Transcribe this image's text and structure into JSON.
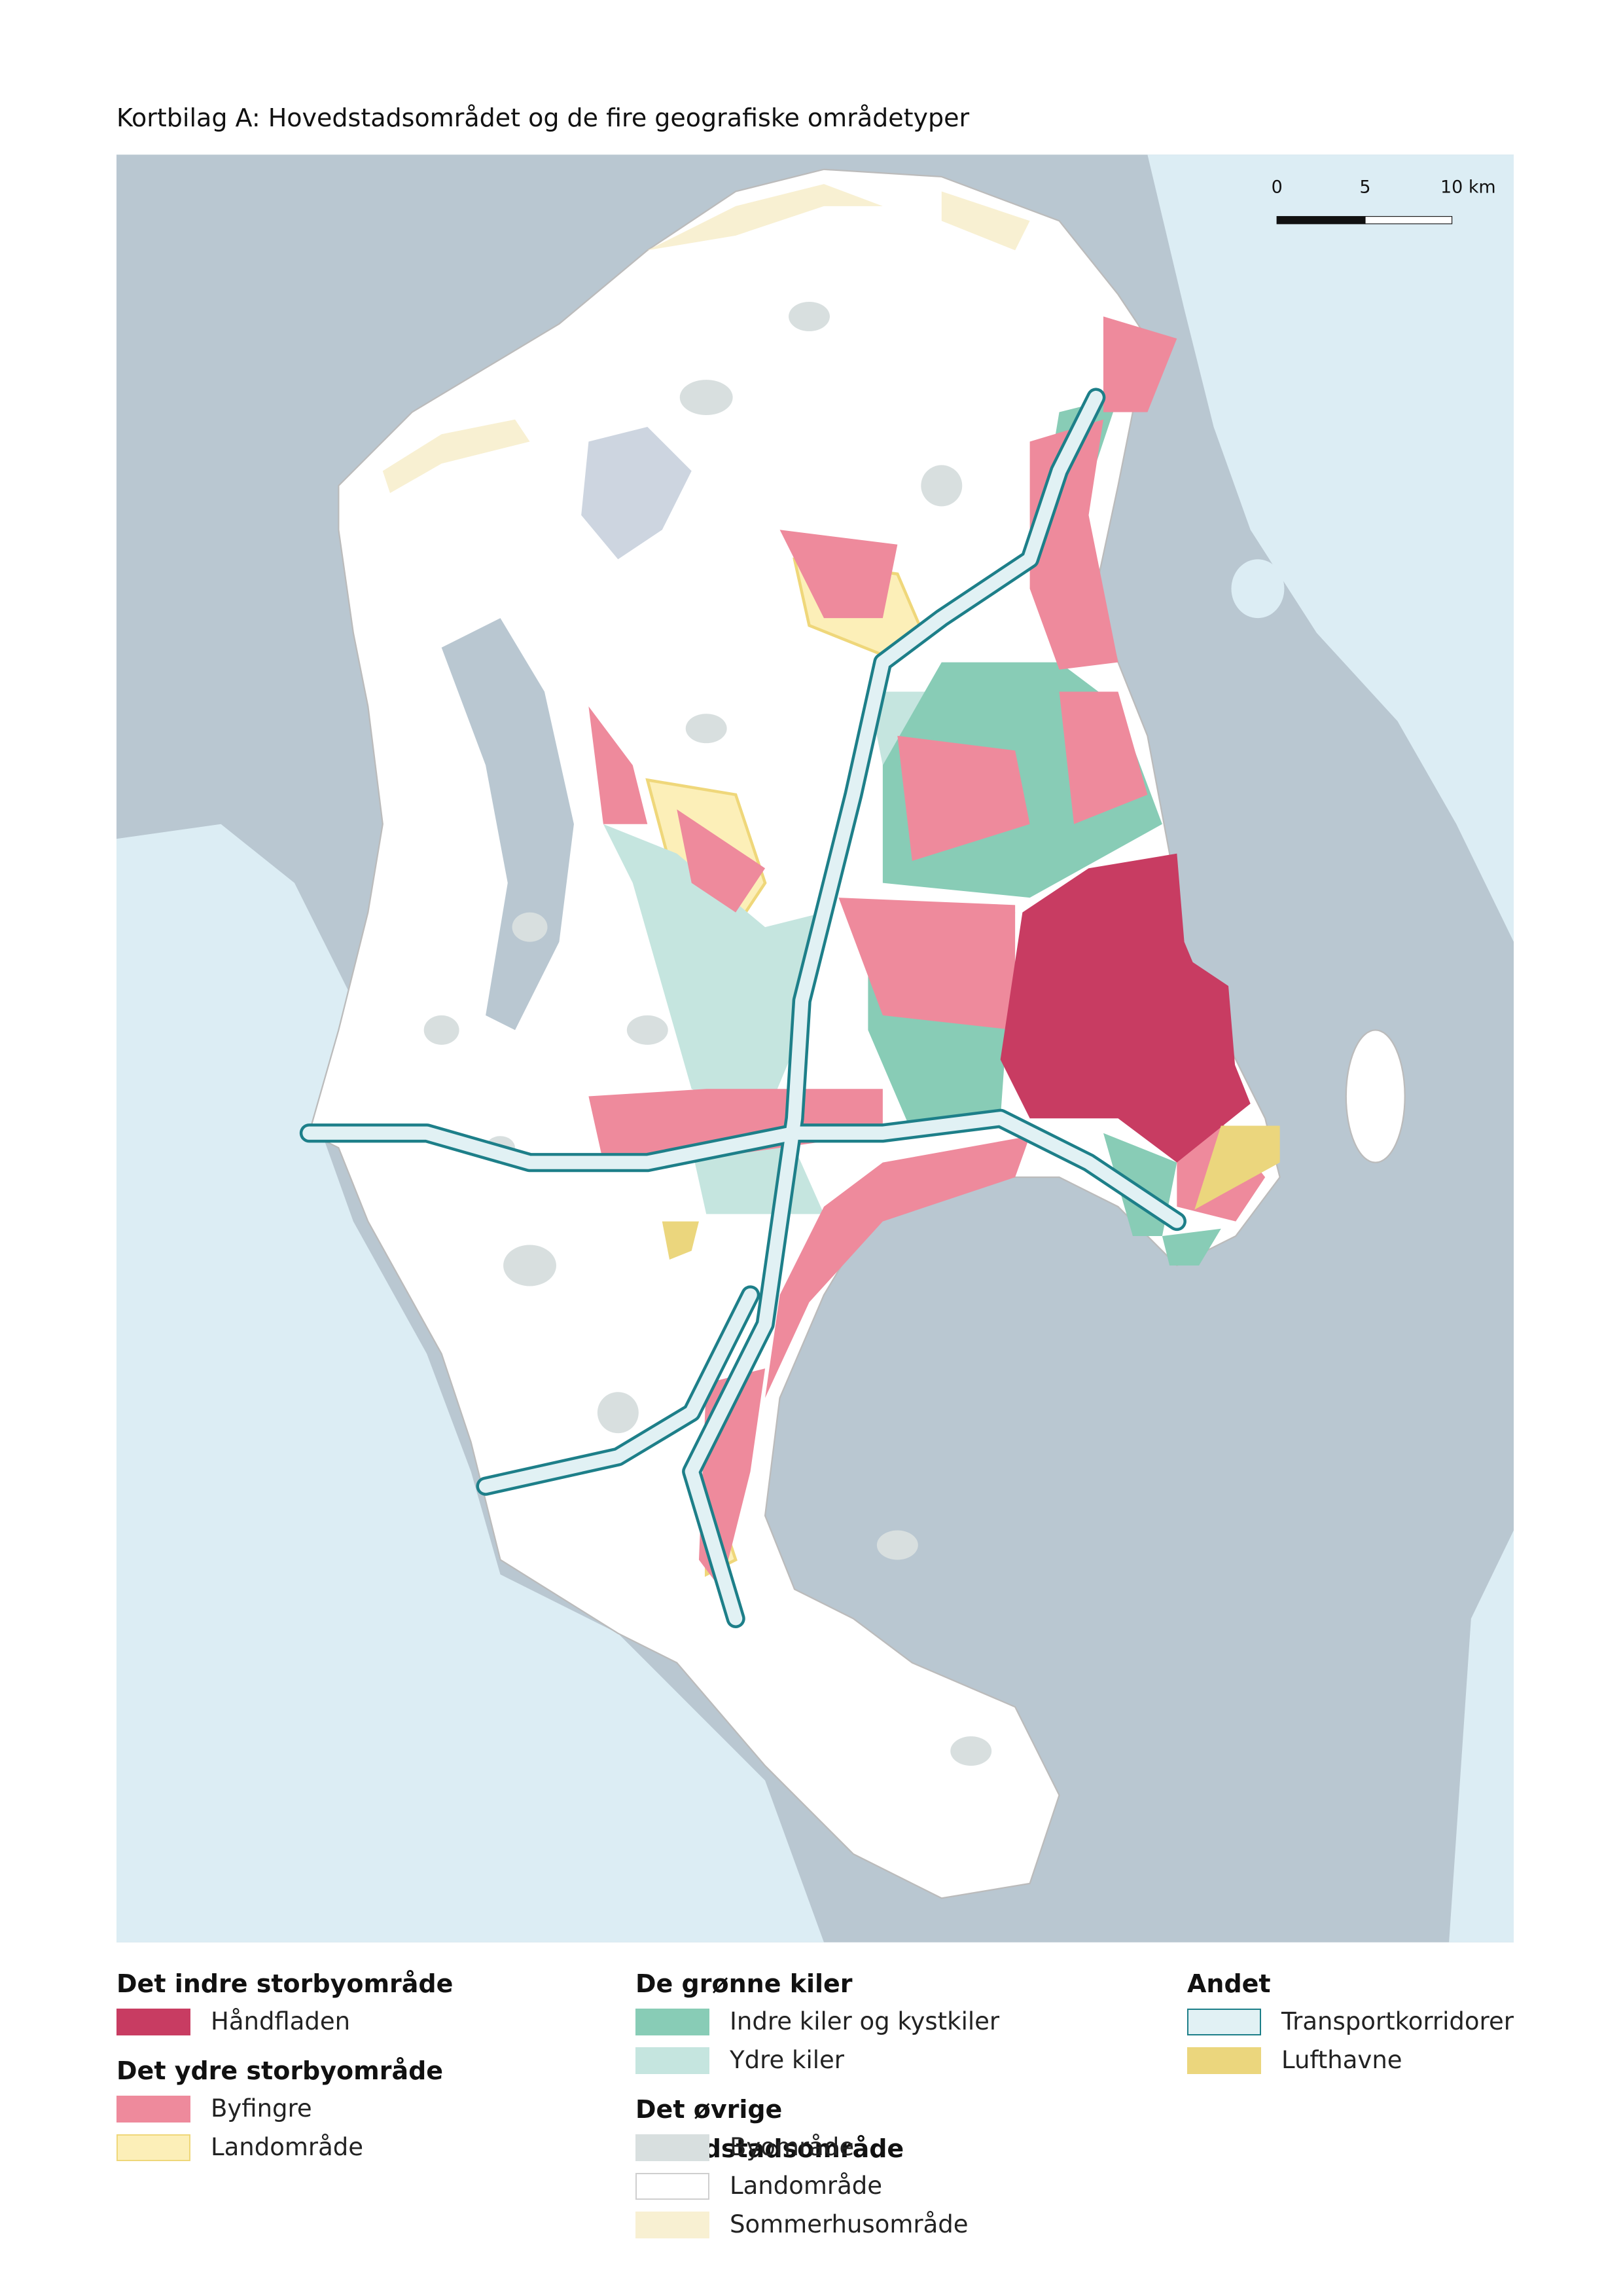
{
  "title": "Kortbilag A: Hovedstadsområdet og de fire geografiske områdetyper",
  "scale_bar": {
    "labels": [
      "0",
      "5",
      "10 km"
    ]
  },
  "legend": [
    [
      {
        "heading": "Det indre storbyområde",
        "items": [
          {
            "label": "Håndfladen",
            "color": "#c83c62"
          }
        ]
      },
      {
        "heading": "Det ydre storbyområde",
        "items": [
          {
            "label": "Byfingre",
            "color": "#ee8a9c"
          },
          {
            "label": "Landområde",
            "color": "#fcefb8",
            "border": "#efd77a"
          }
        ]
      }
    ],
    [
      {
        "heading": "De grønne kiler",
        "items": [
          {
            "label": "Indre kiler og kystkiler",
            "color": "#88ccb6"
          },
          {
            "label": "Ydre kiler",
            "color": "#c5e5df"
          }
        ]
      },
      {
        "heading": "Det øvrige hovedstadsområde",
        "items": [
          {
            "label": "Byområde",
            "color": "#d8dfdf"
          },
          {
            "label": "Landområde",
            "color": "#ffffff",
            "border": "#cfcfcf"
          },
          {
            "label": "Sommerhusområde",
            "color": "#f8f0d2"
          }
        ]
      }
    ],
    [
      {
        "heading": "Andet",
        "items": [
          {
            "label": "Transportkorridorer",
            "color": "#e1f1f4",
            "border": "#1d7f89"
          },
          {
            "label": "Lufthavne",
            "color": "#ebd67d"
          }
        ]
      }
    ]
  ]
}
